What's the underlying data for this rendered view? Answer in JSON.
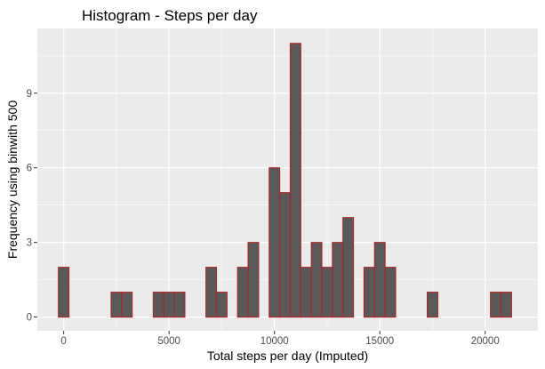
{
  "chart_data": {
    "type": "bar",
    "title": "Histogram - Steps per day",
    "xlabel": "Total steps per day (Imputed)",
    "ylabel": "Frequency using binwith 500",
    "binwidth": 500,
    "bin_start": -250,
    "counts": [
      2,
      0,
      0,
      0,
      0,
      1,
      1,
      0,
      0,
      1,
      1,
      1,
      0,
      0,
      2,
      1,
      0,
      2,
      3,
      0,
      6,
      5,
      11,
      2,
      3,
      2,
      3,
      4,
      0,
      2,
      3,
      2,
      0,
      0,
      0,
      1,
      0,
      0,
      0,
      0,
      0,
      1,
      1
    ],
    "xlim": [
      -1250,
      22500
    ],
    "ylim": [
      -0.55,
      11.6
    ],
    "x_ticks": [
      0,
      5000,
      10000,
      15000,
      20000
    ],
    "x_tick_labels": [
      "0",
      "5000",
      "10000",
      "15000",
      "20000"
    ],
    "y_ticks": [
      0,
      3,
      6,
      9
    ],
    "y_tick_labels": [
      "0",
      "3",
      "6",
      "9"
    ],
    "grid": true,
    "colors": {
      "panel_background": "#ebebeb",
      "grid_major": "#ffffff",
      "bar_fill": "#595959",
      "bar_outline": "#b22222"
    }
  }
}
